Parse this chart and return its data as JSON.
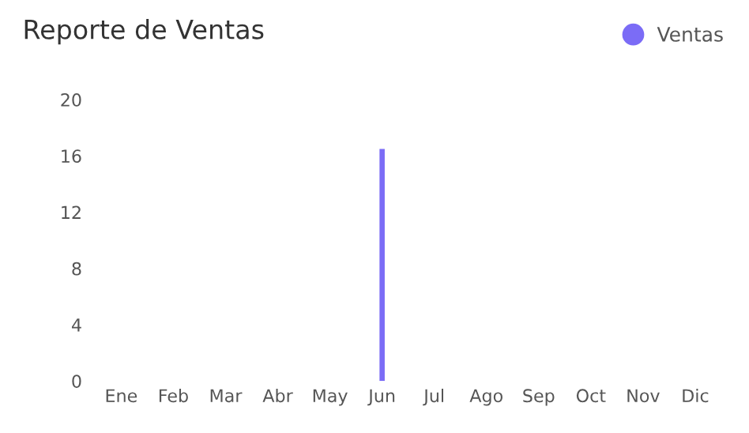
{
  "chart_data": {
    "type": "bar",
    "title": "Reporte de Ventas",
    "categories": [
      "Ene",
      "Feb",
      "Mar",
      "Abr",
      "May",
      "Jun",
      "Jul",
      "Ago",
      "Sep",
      "Oct",
      "Nov",
      "Dic"
    ],
    "series": [
      {
        "name": "Ventas",
        "color": "#7b6cf6",
        "values": [
          0,
          0,
          0,
          0,
          0,
          16.5,
          0,
          0,
          0,
          0,
          0,
          0
        ]
      }
    ],
    "ylim": [
      0,
      20
    ],
    "yticks": [
      0,
      4,
      8,
      12,
      16,
      20
    ],
    "grid": false,
    "legend": "top right"
  }
}
